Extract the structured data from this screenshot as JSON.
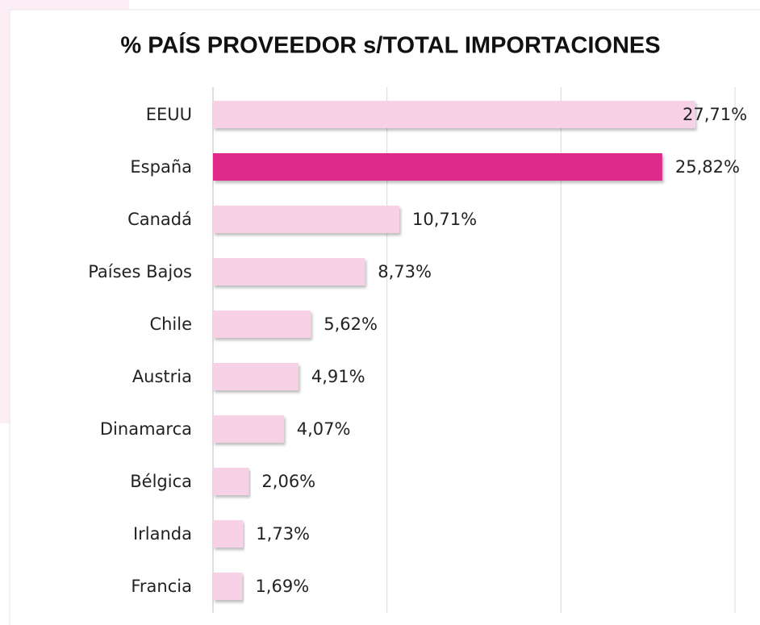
{
  "chart_data": {
    "type": "bar",
    "orientation": "horizontal",
    "title": "% PAÍS PROVEEDOR  s/TOTAL IMPORTACIONES",
    "categories": [
      "EEUU",
      "España",
      "Canadá",
      "Países Bajos",
      "Chile",
      "Austria",
      "Dinamarca",
      "Bélgica",
      "Irlanda",
      "Francia"
    ],
    "values": [
      27.71,
      25.82,
      10.71,
      8.73,
      5.62,
      4.91,
      4.07,
      2.06,
      1.73,
      1.69
    ],
    "value_labels": [
      "27,71%",
      "25,82%",
      "10,71%",
      "8,73%",
      "5,62%",
      "4,91%",
      "4,07%",
      "2,06%",
      "1,73%",
      "1,69%"
    ],
    "colors": [
      "#f7d1e6",
      "#e02b8a",
      "#f7d1e6",
      "#f7d1e6",
      "#f7d1e6",
      "#f7d1e6",
      "#f7d1e6",
      "#f7d1e6",
      "#f7d1e6",
      "#f7d1e6"
    ],
    "xlim": [
      0,
      30
    ],
    "xticks": [
      0,
      10,
      20,
      30
    ],
    "grid": true
  }
}
